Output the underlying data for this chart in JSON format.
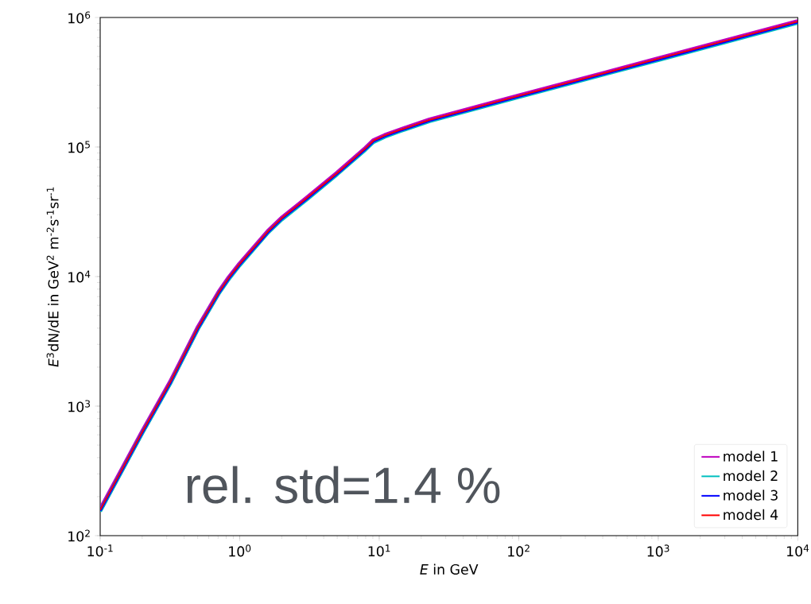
{
  "chart_data": {
    "type": "line",
    "xlabel": "*E* in GeV",
    "ylabel": "*E*$^{3}$dN/dE in GeV$^{2}$ m$^{-2}$s$^{-1}$sr$^{-1}$",
    "annotations": [
      "rel. std=1.4 %"
    ],
    "log": "xy",
    "x": [
      0.1,
      0.2,
      0.32,
      0.5,
      0.71,
      0.84,
      1,
      1.6,
      2,
      3,
      5,
      8,
      9.1,
      11,
      14,
      23,
      100,
      1000,
      10000
    ],
    "series": [
      {
        "name": "model 1",
        "color": "#bf00bf",
        "values": [
          158,
          630,
          1550,
          4000,
          7600,
          9860,
          12500,
          22400,
          28200,
          40000,
          63000,
          98000,
          112000,
          123000,
          135000,
          162000,
          248000,
          480000,
          930000
        ]
      },
      {
        "name": "model 2",
        "color": "#00bfbf",
        "values": [
          154,
          615,
          1510,
          3900,
          7420,
          9620,
          12200,
          21900,
          27500,
          39000,
          61500,
          95600,
          109000,
          120000,
          132000,
          158000,
          242000,
          468000,
          907000
        ]
      },
      {
        "name": "model 3",
        "color": "#0000ff",
        "values": [
          156,
          622,
          1530,
          3950,
          7510,
          9740,
          12350,
          22100,
          27900,
          39500,
          62200,
          96800,
          110500,
          121500,
          133500,
          160000,
          245000,
          474000,
          918000
        ]
      },
      {
        "name": "model 4",
        "color": "#ff0000",
        "values": [
          158,
          630,
          1550,
          4000,
          7600,
          9860,
          12500,
          22400,
          28200,
          40000,
          63000,
          98000,
          112000,
          123000,
          135000,
          162000,
          248000,
          480000,
          930000
        ]
      }
    ],
    "xlim": [
      0.1,
      10000
    ],
    "ylim": [
      100,
      1000000
    ],
    "xticks": [
      {
        "value": 0.1,
        "label": "10$^{-1}$"
      },
      {
        "value": 1,
        "label": "10$^{0}$"
      },
      {
        "value": 10,
        "label": "10$^{1}$"
      },
      {
        "value": 100,
        "label": "10$^{2}$"
      },
      {
        "value": 1000,
        "label": "10$^{3}$"
      },
      {
        "value": 10000,
        "label": "10$^{4}$"
      }
    ],
    "yticks": [
      {
        "value": 100,
        "label": "10$^{2}$"
      },
      {
        "value": 1000,
        "label": "10$^{3}$"
      },
      {
        "value": 10000,
        "label": "10$^{4}$"
      },
      {
        "value": 100000,
        "label": "10$^{5}$"
      },
      {
        "value": 1000000,
        "label": "10$^{6}$"
      }
    ],
    "grid": false,
    "legend": "bottom right",
    "marker": "none",
    "line_style": "solid"
  }
}
